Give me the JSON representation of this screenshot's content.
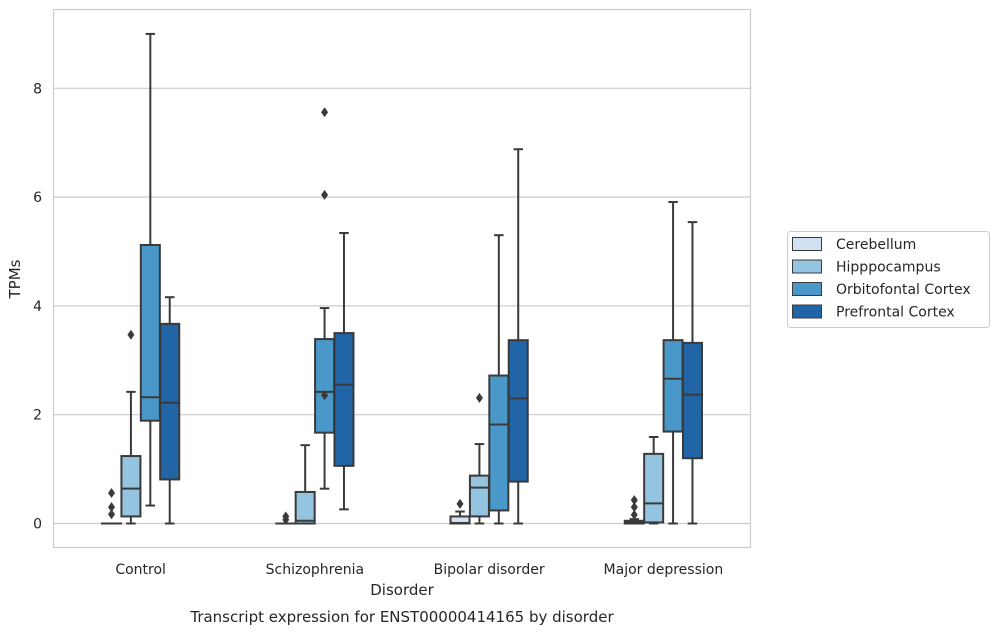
{
  "chart_data": {
    "type": "box",
    "title": "Transcript expression for ENST00000414165 by disorder",
    "xlabel": "Disorder",
    "ylabel": "TPMs",
    "ylim": [
      -0.45,
      9.45
    ],
    "yticks": [
      0,
      2,
      4,
      6,
      8
    ],
    "grid": "horizontal",
    "legend_position": "right",
    "categories": [
      "Control",
      "Schizophrenia",
      "Bipolar disorder",
      "Major depression"
    ],
    "series": [
      {
        "name": "Cerebellum",
        "color": "#d0e1f2",
        "boxes": [
          {
            "whislo": 0,
            "q1": 0,
            "med": 0,
            "q3": 0,
            "whishi": 0,
            "fliers": [
              0.17,
              0.3,
              0.56
            ]
          },
          {
            "whislo": 0,
            "q1": 0,
            "med": 0,
            "q3": 0,
            "whishi": 0,
            "fliers": [
              0.07,
              0.13
            ]
          },
          {
            "whislo": 0,
            "q1": 0,
            "med": 0.01,
            "q3": 0.13,
            "whishi": 0.22,
            "fliers": [
              0.36
            ]
          },
          {
            "whislo": 0,
            "q1": 0,
            "med": 0.02,
            "q3": 0.05,
            "whishi": 0.08,
            "fliers": [
              0.16,
              0.3,
              0.43
            ]
          }
        ]
      },
      {
        "name": "Hipppocampus",
        "color": "#94c4df",
        "boxes": [
          {
            "whislo": 0,
            "q1": 0.13,
            "med": 0.64,
            "q3": 1.24,
            "whishi": 2.42,
            "fliers": [
              3.47
            ]
          },
          {
            "whislo": 0,
            "q1": 0,
            "med": 0.05,
            "q3": 0.58,
            "whishi": 1.44,
            "fliers": []
          },
          {
            "whislo": 0,
            "q1": 0.13,
            "med": 0.66,
            "q3": 0.88,
            "whishi": 1.46,
            "fliers": [
              2.31
            ]
          },
          {
            "whislo": 0,
            "q1": 0.02,
            "med": 0.37,
            "q3": 1.28,
            "whishi": 1.59,
            "fliers": []
          }
        ]
      },
      {
        "name": "Orbitofontal Cortex",
        "color": "#4a98c9",
        "boxes": [
          {
            "whislo": 0.33,
            "q1": 1.89,
            "med": 2.32,
            "q3": 5.12,
            "whishi": 9.0,
            "fliers": []
          },
          {
            "whislo": 0.64,
            "q1": 1.67,
            "med": 2.42,
            "q3": 3.39,
            "whishi": 3.96,
            "fliers": [
              2.36,
              6.04,
              7.56
            ]
          },
          {
            "whislo": 0,
            "q1": 0.24,
            "med": 1.82,
            "q3": 2.72,
            "whishi": 5.3,
            "fliers": []
          },
          {
            "whislo": 0,
            "q1": 1.69,
            "med": 2.66,
            "q3": 3.37,
            "whishi": 5.91,
            "fliers": []
          }
        ]
      },
      {
        "name": "Prefrontal Cortex",
        "color": "#2165a7",
        "boxes": [
          {
            "whislo": 0,
            "q1": 0.81,
            "med": 2.22,
            "q3": 3.67,
            "whishi": 4.16,
            "fliers": []
          },
          {
            "whislo": 0.26,
            "q1": 1.06,
            "med": 2.55,
            "q3": 3.5,
            "whishi": 5.34,
            "fliers": []
          },
          {
            "whislo": 0,
            "q1": 0.77,
            "med": 2.3,
            "q3": 3.37,
            "whishi": 6.88,
            "fliers": []
          },
          {
            "whislo": 0,
            "q1": 1.2,
            "med": 2.37,
            "q3": 3.32,
            "whishi": 5.54,
            "fliers": []
          }
        ]
      }
    ]
  }
}
